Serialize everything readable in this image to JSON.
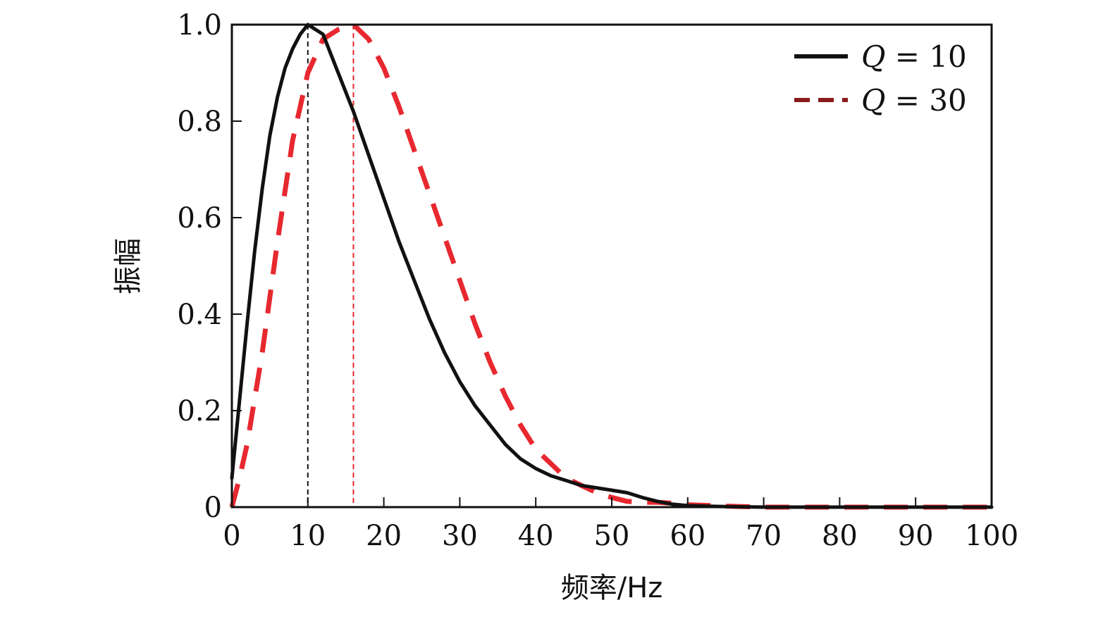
{
  "chart_data": {
    "type": "line",
    "title": "",
    "xlabel": "频率/Hz",
    "ylabel": "振幅",
    "xlim": [
      0,
      100
    ],
    "ylim": [
      0,
      1
    ],
    "xticks": [
      0,
      10,
      20,
      30,
      40,
      50,
      60,
      70,
      80,
      90,
      100
    ],
    "yticks": [
      0,
      0.2,
      0.4,
      0.6,
      0.8,
      1.0
    ],
    "ytick_labels": [
      "0",
      "0.2",
      "0.4",
      "0.6",
      "0.8",
      "1.0"
    ],
    "grid": false,
    "legend_position": "top-right",
    "colors": {
      "q10": "#111111",
      "q30": "#e8282f",
      "q30_legend": "#8b1a1a"
    },
    "series": [
      {
        "name": "Q = 10",
        "legend_q": "Q",
        "legend_rest": " = 10",
        "style": "solid",
        "x": [
          0,
          1,
          2,
          3,
          4,
          5,
          6,
          7,
          8,
          9,
          10,
          12,
          14,
          16,
          18,
          20,
          22,
          24,
          26,
          28,
          30,
          32,
          34,
          36,
          38,
          40,
          42,
          44,
          46,
          48,
          50,
          52,
          54,
          56,
          58,
          60,
          65,
          70,
          80,
          90,
          100
        ],
        "values": [
          0.06,
          0.22,
          0.38,
          0.53,
          0.66,
          0.77,
          0.85,
          0.91,
          0.95,
          0.98,
          1.0,
          0.98,
          0.9,
          0.82,
          0.73,
          0.64,
          0.55,
          0.47,
          0.39,
          0.32,
          0.26,
          0.21,
          0.17,
          0.13,
          0.1,
          0.08,
          0.065,
          0.055,
          0.045,
          0.04,
          0.035,
          0.03,
          0.02,
          0.012,
          0.006,
          0.003,
          0.001,
          0.0,
          0.0,
          0.0,
          0.0
        ]
      },
      {
        "name": "Q = 30",
        "legend_q": "Q",
        "legend_rest": " = 30",
        "style": "dashed",
        "x": [
          0,
          1,
          2,
          4,
          6,
          8,
          10,
          12,
          14,
          16,
          18,
          20,
          22,
          24,
          26,
          28,
          30,
          32,
          34,
          36,
          38,
          40,
          42,
          44,
          46,
          48,
          50,
          52,
          54,
          56,
          58,
          60,
          65,
          70,
          80,
          90,
          100
        ],
        "values": [
          0.0,
          0.06,
          0.13,
          0.32,
          0.55,
          0.76,
          0.9,
          0.97,
          0.99,
          1.0,
          0.97,
          0.91,
          0.83,
          0.74,
          0.65,
          0.56,
          0.47,
          0.38,
          0.3,
          0.23,
          0.17,
          0.12,
          0.09,
          0.06,
          0.045,
          0.03,
          0.02,
          0.012,
          0.01,
          0.01,
          0.008,
          0.005,
          0.002,
          0.0,
          0.0,
          0.0,
          0.0
        ]
      }
    ],
    "reference_lines": [
      {
        "x": 10,
        "color": "#111111"
      },
      {
        "x": 16,
        "color": "#e8282f"
      }
    ]
  }
}
